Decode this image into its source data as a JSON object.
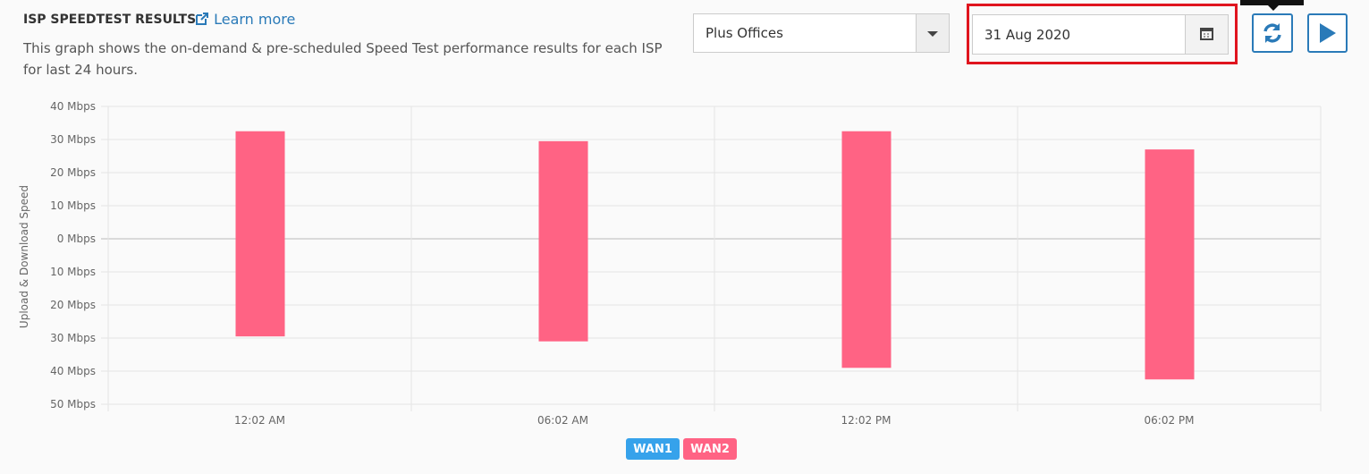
{
  "header": {
    "title": "ISP SPEEDTEST RESULTS",
    "link": "Learn more",
    "description": "This graph shows the on-demand & pre-scheduled Speed Test performance results for each ISP for last 24 hours."
  },
  "controls": {
    "group_select": "Plus Offices",
    "date": "31 Aug 2020"
  },
  "chart_data": {
    "type": "floating_bar",
    "y_label": "Upload & Download Speed",
    "categories": [
      "12:02 AM",
      "06:02 AM",
      "12:02 PM",
      "06:02 PM"
    ],
    "series": [
      {
        "name": "WAN1",
        "color": "#36a2eb",
        "values": [
          null,
          null,
          null,
          null
        ]
      },
      {
        "name": "WAN2",
        "color": "#ff6384",
        "values": [
          [
            -29.5,
            32.5
          ],
          [
            -31,
            29.5
          ],
          [
            -39,
            32.5
          ],
          [
            -42.5,
            27
          ]
        ]
      }
    ],
    "ylim": [
      -50,
      40
    ],
    "yticks": [
      {
        "value": 40,
        "label": "40 Mbps"
      },
      {
        "value": 30,
        "label": "30 Mbps"
      },
      {
        "value": 20,
        "label": "20 Mbps"
      },
      {
        "value": 10,
        "label": "10 Mbps"
      },
      {
        "value": 0,
        "label": "0 Mbps"
      },
      {
        "value": -10,
        "label": "10 Mbps"
      },
      {
        "value": -20,
        "label": "20 Mbps"
      },
      {
        "value": -30,
        "label": "30 Mbps"
      },
      {
        "value": -40,
        "label": "40 Mbps"
      },
      {
        "value": -50,
        "label": "50 Mbps"
      }
    ],
    "grid": true,
    "legend": "bottom"
  }
}
